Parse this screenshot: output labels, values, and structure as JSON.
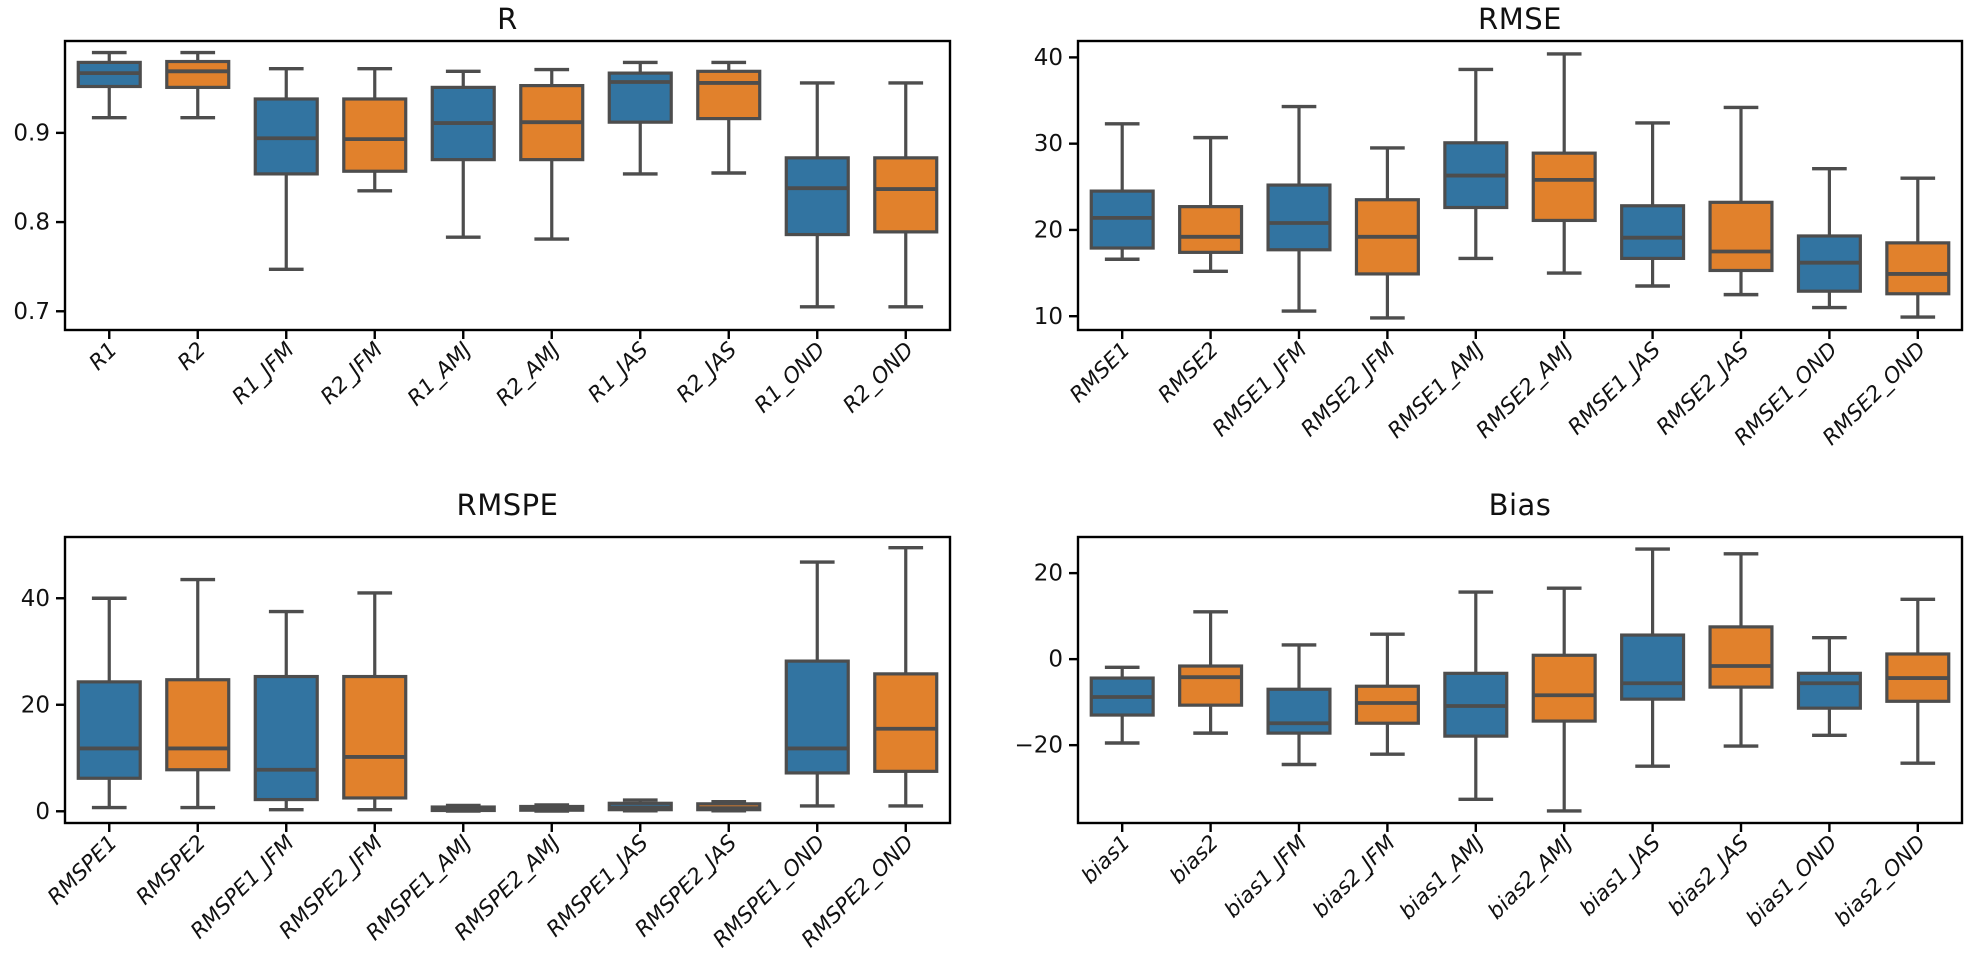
{
  "style": {
    "background": "#ffffff",
    "blue": "#3274A1",
    "orange": "#E1812C",
    "box_edge": "#4D4D4D",
    "spine_color": "#000000",
    "text_color": "#111111"
  },
  "chart_data": [
    {
      "type": "box",
      "title": "R",
      "ylim": [
        0.679,
        1.003
      ],
      "ytick_values": [
        0.7,
        0.8,
        0.9
      ],
      "ytick_labels": [
        "0.7",
        "0.8",
        "0.9"
      ],
      "categories": [
        "R1",
        "R2",
        "R1_JFM",
        "R2_JFM",
        "R1_AMJ",
        "R2_AMJ",
        "R1_JAS",
        "R2_JAS",
        "R1_OND",
        "R2_OND"
      ],
      "boxes": [
        {
          "label": "R1",
          "color": "blue",
          "whislo": 0.917,
          "q1": 0.952,
          "med": 0.967,
          "q3": 0.979,
          "whishi": 0.99
        },
        {
          "label": "R2",
          "color": "orange",
          "whislo": 0.917,
          "q1": 0.951,
          "med": 0.969,
          "q3": 0.98,
          "whishi": 0.99
        },
        {
          "label": "R1_JFM",
          "color": "blue",
          "whislo": 0.747,
          "q1": 0.854,
          "med": 0.894,
          "q3": 0.938,
          "whishi": 0.972
        },
        {
          "label": "R2_JFM",
          "color": "orange",
          "whislo": 0.835,
          "q1": 0.857,
          "med": 0.893,
          "q3": 0.938,
          "whishi": 0.972
        },
        {
          "label": "R1_AMJ",
          "color": "blue",
          "whislo": 0.783,
          "q1": 0.87,
          "med": 0.911,
          "q3": 0.951,
          "whishi": 0.969
        },
        {
          "label": "R2_AMJ",
          "color": "orange",
          "whislo": 0.781,
          "q1": 0.87,
          "med": 0.912,
          "q3": 0.953,
          "whishi": 0.971
        },
        {
          "label": "R1_JAS",
          "color": "blue",
          "whislo": 0.854,
          "q1": 0.912,
          "med": 0.957,
          "q3": 0.967,
          "whishi": 0.979
        },
        {
          "label": "R2_JAS",
          "color": "orange",
          "whislo": 0.855,
          "q1": 0.916,
          "med": 0.956,
          "q3": 0.969,
          "whishi": 0.979
        },
        {
          "label": "R1_OND",
          "color": "blue",
          "whislo": 0.705,
          "q1": 0.786,
          "med": 0.838,
          "q3": 0.872,
          "whishi": 0.956
        },
        {
          "label": "R2_OND",
          "color": "orange",
          "whislo": 0.705,
          "q1": 0.789,
          "med": 0.837,
          "q3": 0.872,
          "whishi": 0.956
        }
      ]
    },
    {
      "type": "box",
      "title": "RMSE",
      "ylim": [
        8.4,
        41.9
      ],
      "ytick_values": [
        10,
        20,
        30,
        40
      ],
      "ytick_labels": [
        "10",
        "20",
        "30",
        "40"
      ],
      "categories": [
        "RMSE1",
        "RMSE2",
        "RMSE1_JFM",
        "RMSE2_JFM",
        "RMSE1_AMJ",
        "RMSE2_AMJ",
        "RMSE1_JAS",
        "RMSE2_JAS",
        "RMSE1_OND",
        "RMSE2_OND"
      ],
      "boxes": [
        {
          "label": "RMSE1",
          "color": "blue",
          "whislo": 16.6,
          "q1": 17.9,
          "med": 21.4,
          "q3": 24.5,
          "whishi": 32.3
        },
        {
          "label": "RMSE2",
          "color": "orange",
          "whislo": 15.2,
          "q1": 17.4,
          "med": 19.2,
          "q3": 22.7,
          "whishi": 30.7
        },
        {
          "label": "RMSE1_JFM",
          "color": "blue",
          "whislo": 10.6,
          "q1": 17.7,
          "med": 20.8,
          "q3": 25.2,
          "whishi": 34.3
        },
        {
          "label": "RMSE2_JFM",
          "color": "orange",
          "whislo": 9.8,
          "q1": 14.9,
          "med": 19.2,
          "q3": 23.5,
          "whishi": 29.5
        },
        {
          "label": "RMSE1_AMJ",
          "color": "blue",
          "whislo": 16.7,
          "q1": 22.6,
          "med": 26.3,
          "q3": 30.1,
          "whishi": 38.6
        },
        {
          "label": "RMSE2_AMJ",
          "color": "orange",
          "whislo": 15.0,
          "q1": 21.1,
          "med": 25.8,
          "q3": 28.9,
          "whishi": 40.4
        },
        {
          "label": "RMSE1_JAS",
          "color": "blue",
          "whislo": 13.5,
          "q1": 16.7,
          "med": 19.1,
          "q3": 22.8,
          "whishi": 32.4
        },
        {
          "label": "RMSE2_JAS",
          "color": "orange",
          "whislo": 12.5,
          "q1": 15.3,
          "med": 17.5,
          "q3": 23.2,
          "whishi": 34.2
        },
        {
          "label": "RMSE1_OND",
          "color": "blue",
          "whislo": 11.0,
          "q1": 12.9,
          "med": 16.2,
          "q3": 19.3,
          "whishi": 27.1
        },
        {
          "label": "RMSE2_OND",
          "color": "orange",
          "whislo": 9.9,
          "q1": 12.6,
          "med": 14.9,
          "q3": 18.5,
          "whishi": 26.0
        }
      ]
    },
    {
      "type": "box",
      "title": "RMSPE",
      "ylim": [
        -2.2,
        51.5
      ],
      "ytick_values": [
        0,
        20,
        40
      ],
      "ytick_labels": [
        "0",
        "20",
        "40"
      ],
      "categories": [
        "RMSPE1",
        "RMSPE2",
        "RMSPE1_JFM",
        "RMSPE2_JFM",
        "RMSPE1_AMJ",
        "RMSPE2_AMJ",
        "RMSPE1_JAS",
        "RMSPE2_JAS",
        "RMSPE1_OND",
        "RMSPE2_OND"
      ],
      "boxes": [
        {
          "label": "RMSPE1",
          "color": "blue",
          "whislo": 0.7,
          "q1": 6.2,
          "med": 11.8,
          "q3": 24.3,
          "whishi": 40.0
        },
        {
          "label": "RMSPE2",
          "color": "orange",
          "whislo": 0.7,
          "q1": 7.8,
          "med": 11.8,
          "q3": 24.7,
          "whishi": 43.5
        },
        {
          "label": "RMSPE1_JFM",
          "color": "blue",
          "whislo": 0.3,
          "q1": 2.2,
          "med": 7.8,
          "q3": 25.3,
          "whishi": 37.5
        },
        {
          "label": "RMSPE2_JFM",
          "color": "orange",
          "whislo": 0.3,
          "q1": 2.5,
          "med": 10.2,
          "q3": 25.3,
          "whishi": 41.0
        },
        {
          "label": "RMSPE1_AMJ",
          "color": "blue",
          "whislo": 0.05,
          "q1": 0.15,
          "med": 0.4,
          "q3": 0.8,
          "whishi": 1.1
        },
        {
          "label": "RMSPE2_AMJ",
          "color": "orange",
          "whislo": 0.05,
          "q1": 0.2,
          "med": 0.45,
          "q3": 0.9,
          "whishi": 1.2
        },
        {
          "label": "RMSPE1_JAS",
          "color": "blue",
          "whislo": 0.1,
          "q1": 0.3,
          "med": 0.7,
          "q3": 1.5,
          "whishi": 2.1
        },
        {
          "label": "RMSPE2_JAS",
          "color": "orange",
          "whislo": 0.1,
          "q1": 0.3,
          "med": 0.6,
          "q3": 1.4,
          "whishi": 1.8
        },
        {
          "label": "RMSPE1_OND",
          "color": "blue",
          "whislo": 1.0,
          "q1": 7.2,
          "med": 11.8,
          "q3": 28.2,
          "whishi": 46.8
        },
        {
          "label": "RMSPE2_OND",
          "color": "orange",
          "whislo": 1.0,
          "q1": 7.5,
          "med": 15.5,
          "q3": 25.8,
          "whishi": 49.5
        }
      ]
    },
    {
      "type": "box",
      "title": "Bias",
      "ylim": [
        -38.1,
        28.4
      ],
      "ytick_values": [
        -20,
        0,
        20
      ],
      "ytick_labels": [
        "−20",
        "0",
        "20"
      ],
      "categories": [
        "bias1",
        "bias2",
        "bias1_JFM",
        "bias2_JFM",
        "bias1_AMJ",
        "bias2_AMJ",
        "bias1_JAS",
        "bias2_JAS",
        "bias1_OND",
        "bias2_OND"
      ],
      "boxes": [
        {
          "label": "bias1",
          "color": "blue",
          "whislo": -19.5,
          "q1": -13.0,
          "med": -8.8,
          "q3": -4.4,
          "whishi": -1.9
        },
        {
          "label": "bias2",
          "color": "orange",
          "whislo": -17.2,
          "q1": -10.7,
          "med": -4.2,
          "q3": -1.6,
          "whishi": 11.0
        },
        {
          "label": "bias1_JFM",
          "color": "blue",
          "whislo": -24.5,
          "q1": -17.2,
          "med": -14.9,
          "q3": -7.0,
          "whishi": 3.3
        },
        {
          "label": "bias2_JFM",
          "color": "orange",
          "whislo": -22.1,
          "q1": -14.9,
          "med": -10.2,
          "q3": -6.3,
          "whishi": 5.8
        },
        {
          "label": "bias1_AMJ",
          "color": "blue",
          "whislo": -32.6,
          "q1": -17.9,
          "med": -10.9,
          "q3": -3.3,
          "whishi": 15.6
        },
        {
          "label": "bias2_AMJ",
          "color": "orange",
          "whislo": -35.3,
          "q1": -14.4,
          "med": -8.4,
          "q3": 0.9,
          "whishi": 16.5
        },
        {
          "label": "bias1_JAS",
          "color": "blue",
          "whislo": -24.9,
          "q1": -9.3,
          "med": -5.6,
          "q3": 5.6,
          "whishi": 25.6
        },
        {
          "label": "bias2_JAS",
          "color": "orange",
          "whislo": -20.2,
          "q1": -6.5,
          "med": -1.6,
          "q3": 7.5,
          "whishi": 24.5
        },
        {
          "label": "bias1_OND",
          "color": "blue",
          "whislo": -17.7,
          "q1": -11.4,
          "med": -5.6,
          "q3": -3.3,
          "whishi": 5.0
        },
        {
          "label": "bias2_OND",
          "color": "orange",
          "whislo": -24.2,
          "q1": -9.8,
          "med": -4.4,
          "q3": 1.2,
          "whishi": 13.9
        }
      ]
    }
  ]
}
